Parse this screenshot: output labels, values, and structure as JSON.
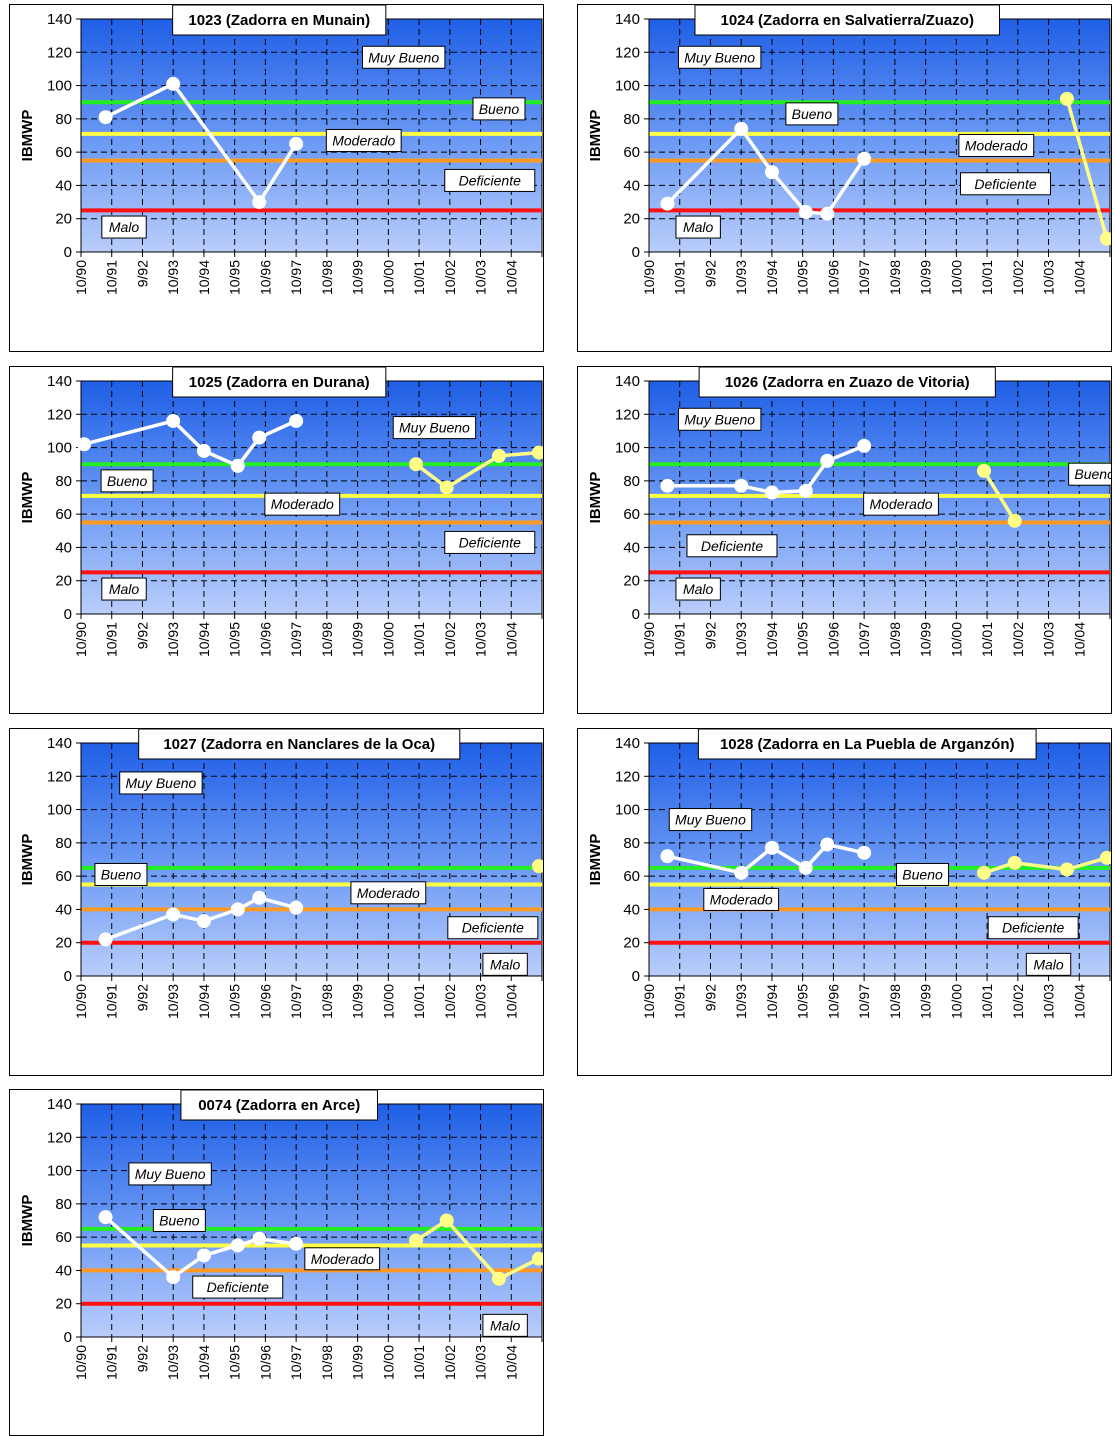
{
  "chart_data": [
    {
      "type": "line",
      "title": "1023 (Zadorra en Munain)",
      "ylabel": "IBMWP",
      "ylim": [
        0,
        140
      ],
      "yticks": [
        0,
        20,
        40,
        60,
        80,
        100,
        120,
        140
      ],
      "xtick_labels": [
        "10/90",
        "10/91",
        "9/92",
        "10/93",
        "10/94",
        "10/95",
        "10/96",
        "10/97",
        "10/98",
        "10/99",
        "10/00",
        "10/01",
        "10/02",
        "10/03",
        "10/04"
      ],
      "thresholds": [
        {
          "value": 90,
          "color": "#22ee22"
        },
        {
          "value": 71,
          "color": "#ffff44"
        },
        {
          "value": 55,
          "color": "#ff9922"
        },
        {
          "value": 25,
          "color": "#ff1111"
        }
      ],
      "class_labels": [
        {
          "text": "Muy Bueno",
          "x": 10.5,
          "y": 117
        },
        {
          "text": "Bueno",
          "x": 13.6,
          "y": 86
        },
        {
          "text": "Moderado",
          "x": 9.2,
          "y": 67
        },
        {
          "text": "Deficiente",
          "x": 13.3,
          "y": 43
        },
        {
          "text": "Malo",
          "x": 1.4,
          "y": 15
        }
      ],
      "series": [
        {
          "color": "#ffffff",
          "points": [
            [
              0.8,
              81
            ],
            [
              3.0,
              101
            ],
            [
              5.8,
              30
            ],
            [
              7.0,
              65
            ]
          ]
        }
      ]
    },
    {
      "type": "line",
      "title": "1024 (Zadorra en Salvatierra/Zuazo)",
      "ylabel": "IBMWP",
      "ylim": [
        0,
        140
      ],
      "yticks": [
        0,
        20,
        40,
        60,
        80,
        100,
        120,
        140
      ],
      "xtick_labels": [
        "10/90",
        "10/91",
        "9/92",
        "10/93",
        "10/94",
        "10/95",
        "10/96",
        "10/97",
        "10/98",
        "10/99",
        "10/00",
        "10/01",
        "10/02",
        "10/03",
        "10/04"
      ],
      "thresholds": [
        {
          "value": 90,
          "color": "#22ee22"
        },
        {
          "value": 71,
          "color": "#ffff44"
        },
        {
          "value": 55,
          "color": "#ff9922"
        },
        {
          "value": 25,
          "color": "#ff1111"
        }
      ],
      "class_labels": [
        {
          "text": "Muy Bueno",
          "x": 2.3,
          "y": 117
        },
        {
          "text": "Bueno",
          "x": 5.3,
          "y": 83
        },
        {
          "text": "Moderado",
          "x": 11.3,
          "y": 64
        },
        {
          "text": "Deficiente",
          "x": 11.6,
          "y": 41
        },
        {
          "text": "Malo",
          "x": 1.6,
          "y": 15
        }
      ],
      "series": [
        {
          "color": "#ffffff",
          "points": [
            [
              0.6,
              29
            ],
            [
              3.0,
              74
            ],
            [
              4.0,
              48
            ],
            [
              5.1,
              24
            ],
            [
              5.8,
              23
            ],
            [
              7.0,
              56
            ]
          ]
        },
        {
          "color": "#ffff88",
          "points": [
            [
              13.6,
              92
            ],
            [
              14.9,
              8
            ]
          ]
        }
      ]
    },
    {
      "type": "line",
      "title": "1025 (Zadorra en Durana)",
      "ylabel": "IBMWP",
      "ylim": [
        0,
        140
      ],
      "yticks": [
        0,
        20,
        40,
        60,
        80,
        100,
        120,
        140
      ],
      "xtick_labels": [
        "10/90",
        "10/91",
        "9/92",
        "10/93",
        "10/94",
        "10/95",
        "10/96",
        "10/97",
        "10/98",
        "10/99",
        "10/00",
        "10/01",
        "10/02",
        "10/03",
        "10/04"
      ],
      "thresholds": [
        {
          "value": 90,
          "color": "#22ee22"
        },
        {
          "value": 71,
          "color": "#ffff44"
        },
        {
          "value": 55,
          "color": "#ff9922"
        },
        {
          "value": 25,
          "color": "#ff1111"
        }
      ],
      "class_labels": [
        {
          "text": "Muy Bueno",
          "x": 11.5,
          "y": 112
        },
        {
          "text": "Bueno",
          "x": 1.5,
          "y": 80
        },
        {
          "text": "Moderado",
          "x": 7.2,
          "y": 66
        },
        {
          "text": "Deficiente",
          "x": 13.3,
          "y": 43
        },
        {
          "text": "Malo",
          "x": 1.4,
          "y": 15
        }
      ],
      "series": [
        {
          "color": "#ffffff",
          "points": [
            [
              0.1,
              102
            ],
            [
              3.0,
              116
            ],
            [
              4.0,
              98
            ],
            [
              5.1,
              89
            ],
            [
              5.8,
              106
            ],
            [
              7.0,
              116
            ]
          ]
        },
        {
          "color": "#ffff88",
          "points": [
            [
              10.9,
              90
            ],
            [
              11.9,
              76
            ],
            [
              13.6,
              95
            ],
            [
              14.9,
              97
            ]
          ]
        }
      ]
    },
    {
      "type": "line",
      "title": "1026 (Zadorra en Zuazo de Vitoria)",
      "ylabel": "IBMWP",
      "ylim": [
        0,
        140
      ],
      "yticks": [
        0,
        20,
        40,
        60,
        80,
        100,
        120,
        140
      ],
      "xtick_labels": [
        "10/90",
        "10/91",
        "9/92",
        "10/93",
        "10/94",
        "10/95",
        "10/96",
        "10/97",
        "10/98",
        "10/99",
        "10/00",
        "10/01",
        "10/02",
        "10/03",
        "10/04"
      ],
      "thresholds": [
        {
          "value": 90,
          "color": "#22ee22"
        },
        {
          "value": 71,
          "color": "#ffff44"
        },
        {
          "value": 55,
          "color": "#ff9922"
        },
        {
          "value": 25,
          "color": "#ff1111"
        }
      ],
      "class_labels": [
        {
          "text": "Muy Bueno",
          "x": 2.3,
          "y": 117
        },
        {
          "text": "Bueno",
          "x": 14.5,
          "y": 84
        },
        {
          "text": "Moderado",
          "x": 8.2,
          "y": 66
        },
        {
          "text": "Deficiente",
          "x": 2.7,
          "y": 41
        },
        {
          "text": "Malo",
          "x": 1.6,
          "y": 15
        }
      ],
      "series": [
        {
          "color": "#ffffff",
          "points": [
            [
              0.6,
              77
            ],
            [
              3.0,
              77
            ],
            [
              4.0,
              73
            ],
            [
              5.1,
              74
            ],
            [
              5.8,
              92
            ],
            [
              7.0,
              101
            ]
          ]
        },
        {
          "color": "#ffff88",
          "points": [
            [
              10.9,
              86
            ],
            [
              11.9,
              56
            ]
          ]
        }
      ]
    },
    {
      "type": "line",
      "title": "1027 (Zadorra en Nanclares de la Oca)",
      "ylabel": "IBMWP",
      "ylim": [
        0,
        140
      ],
      "yticks": [
        0,
        20,
        40,
        60,
        80,
        100,
        120,
        140
      ],
      "xtick_labels": [
        "10/90",
        "10/91",
        "9/92",
        "10/93",
        "10/94",
        "10/95",
        "10/96",
        "10/97",
        "10/98",
        "10/99",
        "10/00",
        "10/01",
        "10/02",
        "10/03",
        "10/04"
      ],
      "thresholds": [
        {
          "value": 65,
          "color": "#22ee22"
        },
        {
          "value": 55,
          "color": "#ffff44"
        },
        {
          "value": 40,
          "color": "#ff9922"
        },
        {
          "value": 20,
          "color": "#ff1111"
        }
      ],
      "class_labels": [
        {
          "text": "Muy Bueno",
          "x": 2.6,
          "y": 116
        },
        {
          "text": "Bueno",
          "x": 1.3,
          "y": 61
        },
        {
          "text": "Moderado",
          "x": 10.0,
          "y": 50
        },
        {
          "text": "Deficiente",
          "x": 13.4,
          "y": 29
        },
        {
          "text": "Malo",
          "x": 13.8,
          "y": 7
        }
      ],
      "series": [
        {
          "color": "#ffffff",
          "points": [
            [
              0.8,
              22
            ],
            [
              3.0,
              37
            ],
            [
              4.0,
              33
            ],
            [
              5.1,
              40
            ],
            [
              5.8,
              47
            ],
            [
              7.0,
              41
            ]
          ]
        },
        {
          "color": "#ffff88",
          "points": [
            [
              14.9,
              66
            ]
          ]
        }
      ]
    },
    {
      "type": "line",
      "title": "1028 (Zadorra en La Puebla de Arganzón)",
      "ylabel": "IBMWP",
      "ylim": [
        0,
        140
      ],
      "yticks": [
        0,
        20,
        40,
        60,
        80,
        100,
        120,
        140
      ],
      "xtick_labels": [
        "10/90",
        "10/91",
        "9/92",
        "10/93",
        "10/94",
        "10/95",
        "10/96",
        "10/97",
        "10/98",
        "10/99",
        "10/00",
        "10/01",
        "10/02",
        "10/03",
        "10/04"
      ],
      "thresholds": [
        {
          "value": 65,
          "color": "#22ee22"
        },
        {
          "value": 55,
          "color": "#ffff44"
        },
        {
          "value": 40,
          "color": "#ff9922"
        },
        {
          "value": 20,
          "color": "#ff1111"
        }
      ],
      "class_labels": [
        {
          "text": "Muy Bueno",
          "x": 2.0,
          "y": 94
        },
        {
          "text": "Bueno",
          "x": 8.9,
          "y": 61
        },
        {
          "text": "Moderado",
          "x": 3.0,
          "y": 46
        },
        {
          "text": "Deficiente",
          "x": 12.5,
          "y": 29
        },
        {
          "text": "Malo",
          "x": 13.0,
          "y": 7
        }
      ],
      "series": [
        {
          "color": "#ffffff",
          "points": [
            [
              0.6,
              72
            ],
            [
              3.0,
              62
            ],
            [
              4.0,
              77
            ],
            [
              5.1,
              65
            ],
            [
              5.8,
              79
            ],
            [
              7.0,
              74
            ]
          ]
        },
        {
          "color": "#ffff88",
          "points": [
            [
              10.9,
              62
            ],
            [
              11.9,
              68
            ],
            [
              13.6,
              64
            ],
            [
              14.9,
              71
            ]
          ]
        }
      ]
    },
    {
      "type": "line",
      "title": "0074 (Zadorra en Arce)",
      "ylabel": "IBMWP",
      "ylim": [
        0,
        140
      ],
      "yticks": [
        0,
        20,
        40,
        60,
        80,
        100,
        120,
        140
      ],
      "xtick_labels": [
        "10/90",
        "10/91",
        "9/92",
        "10/93",
        "10/94",
        "10/95",
        "10/96",
        "10/97",
        "10/98",
        "10/99",
        "10/00",
        "10/01",
        "10/02",
        "10/03",
        "10/04"
      ],
      "thresholds": [
        {
          "value": 65,
          "color": "#22ee22"
        },
        {
          "value": 55,
          "color": "#ffff44"
        },
        {
          "value": 40,
          "color": "#ff9922"
        },
        {
          "value": 20,
          "color": "#ff1111"
        }
      ],
      "class_labels": [
        {
          "text": "Muy Bueno",
          "x": 2.9,
          "y": 98
        },
        {
          "text": "Bueno",
          "x": 3.2,
          "y": 70
        },
        {
          "text": "Moderado",
          "x": 8.5,
          "y": 47
        },
        {
          "text": "Deficiente",
          "x": 5.1,
          "y": 30
        },
        {
          "text": "Malo",
          "x": 13.8,
          "y": 7
        }
      ],
      "series": [
        {
          "color": "#ffffff",
          "points": [
            [
              0.8,
              72
            ],
            [
              3.0,
              36
            ],
            [
              4.0,
              49
            ],
            [
              5.1,
              55
            ],
            [
              5.8,
              59
            ],
            [
              7.0,
              56
            ]
          ]
        },
        {
          "color": "#ffff88",
          "points": [
            [
              10.9,
              58
            ],
            [
              11.9,
              70
            ],
            [
              13.6,
              35
            ],
            [
              14.9,
              47
            ]
          ]
        }
      ]
    }
  ]
}
